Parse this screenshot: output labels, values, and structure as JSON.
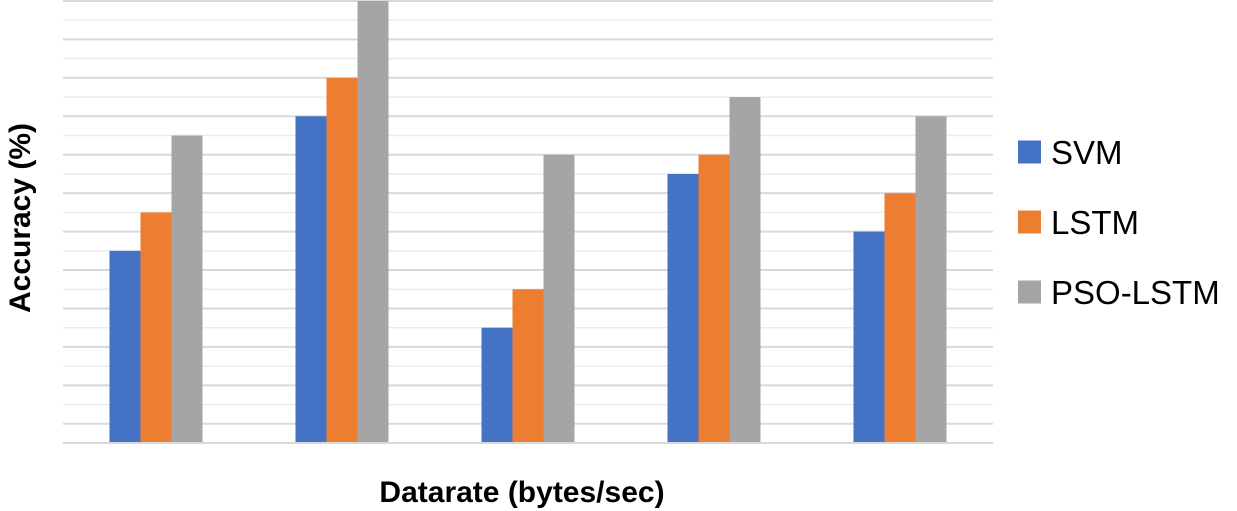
{
  "chart_data": {
    "type": "bar",
    "title": "",
    "xlabel": "Datarate (bytes/sec)",
    "ylabel": "Accuracy  (%)",
    "categories": [
      "",
      "",
      "",
      "",
      ""
    ],
    "ylim": [
      0,
      23
    ],
    "grid": true,
    "legend_position": "right",
    "series": [
      {
        "name": "SVM",
        "color": "#4472C4",
        "values": [
          10,
          17,
          6,
          14,
          11
        ]
      },
      {
        "name": "LSTM",
        "color": "#ED7D31",
        "values": [
          12,
          19,
          8,
          15,
          13
        ]
      },
      {
        "name": "PSO-LSTM",
        "color": "#A5A5A5",
        "values": [
          16,
          23,
          15,
          18,
          17
        ]
      }
    ]
  }
}
